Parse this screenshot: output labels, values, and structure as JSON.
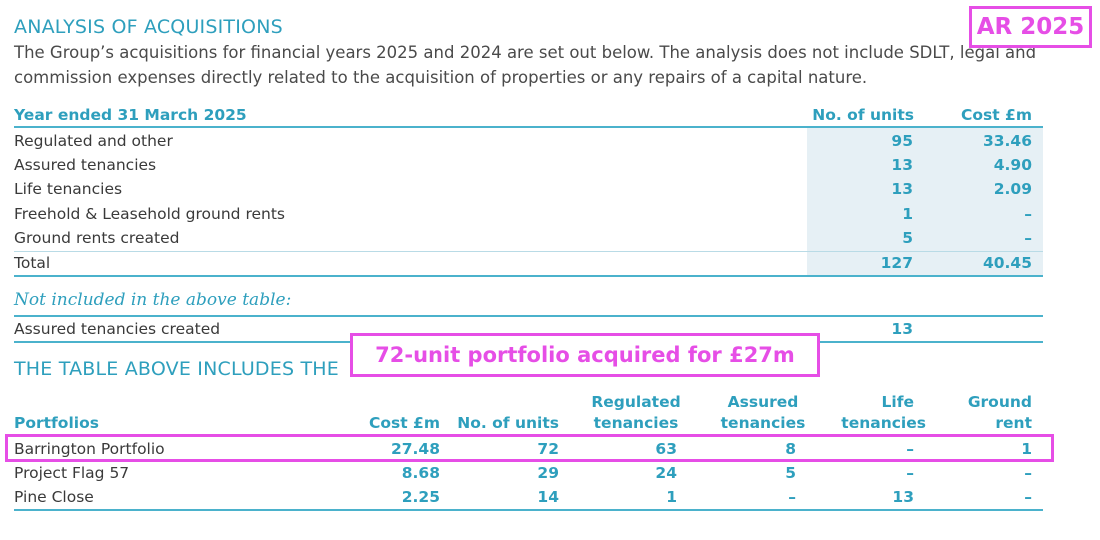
{
  "doc": {
    "heading": "ANALYSIS OF ACQUISITIONS",
    "intro_line1": "The Group’s acquisitions for financial years 2025 and 2024 are set out below. The analysis does not include SDLT, legal and",
    "intro_line2": "commission expenses directly related to the acquisition of properties or any repairs of a capital nature."
  },
  "table1": {
    "title": "Year ended 31 March 2025",
    "col_units": "No. of units",
    "col_cost": "Cost £m",
    "rows": [
      {
        "label": "Regulated and other",
        "units": "95",
        "cost": "33.46"
      },
      {
        "label": "Assured tenancies",
        "units": "13",
        "cost": "4.90"
      },
      {
        "label": "Life tenancies",
        "units": "13",
        "cost": "2.09"
      },
      {
        "label": "Freehold & Leasehold ground rents",
        "units": "1",
        "cost": "–"
      },
      {
        "label": "Ground rents created",
        "units": "5",
        "cost": "–"
      }
    ],
    "total": {
      "label": "Total",
      "units": "127",
      "cost": "40.45"
    }
  },
  "note": {
    "title": "Not included in the above table:",
    "label": "Assured tenancies created",
    "units": "13"
  },
  "section2": {
    "heading": "THE TABLE ABOVE INCLUDES THE"
  },
  "table2": {
    "headers": {
      "portfolios": "Portfolios",
      "cost": "Cost £m",
      "units": "No. of units",
      "regulated_1": "Regulated",
      "regulated_2": "tenancies",
      "assured_1": "Assured",
      "assured_2": "tenancies",
      "life_1": "Life",
      "life_2": "tenancies",
      "ground_1": "Ground",
      "ground_2": "rent"
    },
    "rows": [
      {
        "name": "Barrington Portfolio",
        "cost": "27.48",
        "units": "72",
        "regulated": "63",
        "assured": "8",
        "life": "–",
        "ground": "1"
      },
      {
        "name": "Project Flag 57",
        "cost": "8.68",
        "units": "29",
        "regulated": "24",
        "assured": "5",
        "life": "–",
        "ground": "–"
      },
      {
        "name": "Pine Close",
        "cost": "2.25",
        "units": "14",
        "regulated": "1",
        "assured": "–",
        "life": "13",
        "ground": "–"
      }
    ]
  },
  "annotations": {
    "tag": "AR 2025",
    "callout": "72-unit portfolio acquired for £27m",
    "color": "#e64ee6"
  },
  "colors": {
    "accent": "#2e9fbd",
    "shade": "#e6f0f5"
  }
}
